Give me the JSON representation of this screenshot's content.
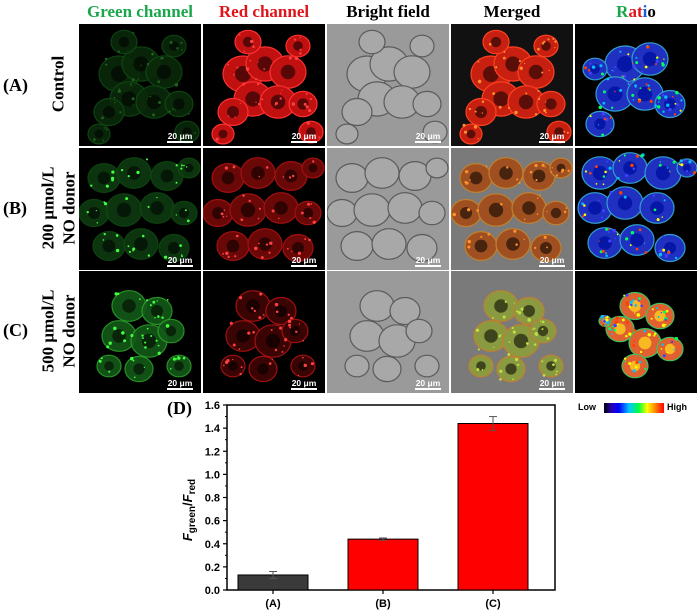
{
  "headers": [
    {
      "text": "Green channel",
      "color": "#1aa64a"
    },
    {
      "text": "Red channel",
      "color": "#e0141b"
    },
    {
      "text": "Bright field",
      "color": "#000000"
    },
    {
      "text": "Merged",
      "color": "#000000"
    }
  ],
  "ratio_header": {
    "r": "R",
    "a": "a",
    "t": "t",
    "i": "i",
    "o": "o"
  },
  "rows": [
    {
      "letter": "(A)",
      "line1": "Control",
      "line2": ""
    },
    {
      "letter": "(B)",
      "line1": "200 μmol/L",
      "line2": "NO donor"
    },
    {
      "letter": "(C)",
      "line1": "500 μmol/L",
      "line2": "NO donor"
    }
  ],
  "scale_bar": "20 μm",
  "colorbar": {
    "low": "Low",
    "high": "High"
  },
  "panel_label": "(D)",
  "chart_data": {
    "type": "bar",
    "categories": [
      "(A)",
      "(B)",
      "(C)"
    ],
    "values": [
      0.13,
      0.44,
      1.44
    ],
    "errors": [
      0.03,
      0.01,
      0.06
    ],
    "colors": [
      "#3a3a3a",
      "#ff0000",
      "#ff0000"
    ],
    "ylabel_main": "F",
    "ylabel_sub1": "green",
    "ylabel_slash": "/",
    "ylabel_main2": "F",
    "ylabel_sub2": "red",
    "ylim": [
      0,
      1.6
    ],
    "yticks": [
      "0.0",
      "0.2",
      "0.4",
      "0.6",
      "0.8",
      "1.0",
      "1.2",
      "1.4",
      "1.6"
    ]
  }
}
